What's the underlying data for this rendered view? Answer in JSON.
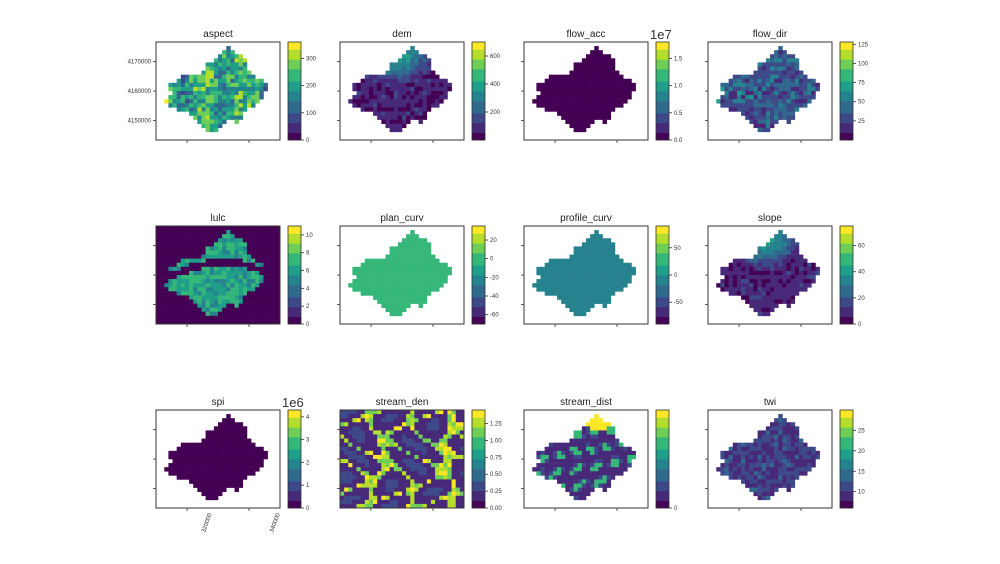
{
  "chart_data": [
    {
      "type": "heatmap",
      "title": "aspect",
      "variant": "mosaic",
      "seed": 3,
      "colorbar_ticks": [
        "0",
        "100",
        "200",
        "300"
      ],
      "colorbar_range": [
        0,
        360
      ],
      "y_ticks": [
        "4150000",
        "4160000",
        "4170000"
      ]
    },
    {
      "type": "heatmap",
      "title": "dem",
      "variant": "dark",
      "seed": 7,
      "colorbar_ticks": [
        "200",
        "400",
        "600"
      ],
      "colorbar_range": [
        0,
        700
      ]
    },
    {
      "type": "heatmap",
      "title": "flow_acc",
      "variant": "flat",
      "seed": 11,
      "offset": "1e7",
      "colorbar_ticks": [
        "0.0",
        "0.5",
        "1.0",
        "1.5"
      ],
      "colorbar_range": [
        0,
        1.8
      ]
    },
    {
      "type": "heatmap",
      "title": "flow_dir",
      "variant": "mosaic-dark",
      "seed": 5,
      "colorbar_ticks": [
        "25",
        "50",
        "75",
        "100",
        "125"
      ],
      "colorbar_range": [
        0,
        128
      ]
    },
    {
      "type": "heatmap",
      "title": "lulc",
      "variant": "lulc",
      "seed": 9,
      "colorbar_ticks": [
        "0",
        "2",
        "4",
        "6",
        "8",
        "10"
      ],
      "colorbar_range": [
        0,
        11
      ]
    },
    {
      "type": "heatmap",
      "title": "plan_curv",
      "variant": "uniform-light",
      "seed": 2,
      "colorbar_ticks": [
        "-60",
        "-40",
        "-20",
        "0",
        "20"
      ],
      "colorbar_range": [
        -70,
        35
      ]
    },
    {
      "type": "heatmap",
      "title": "profile_curv",
      "variant": "uniform-mid",
      "seed": 4,
      "colorbar_ticks": [
        "-50",
        "0",
        "50"
      ],
      "colorbar_range": [
        -90,
        90
      ]
    },
    {
      "type": "heatmap",
      "title": "slope",
      "variant": "dark",
      "seed": 13,
      "colorbar_ticks": [
        "0",
        "20",
        "40",
        "60"
      ],
      "colorbar_range": [
        0,
        75
      ]
    },
    {
      "type": "heatmap",
      "title": "spi",
      "variant": "flat",
      "seed": 17,
      "offset": "1e6",
      "colorbar_ticks": [
        "0",
        "1",
        "2",
        "3",
        "4"
      ],
      "colorbar_range": [
        0,
        4.3
      ],
      "x_ticks": [
        "320000",
        "340000"
      ]
    },
    {
      "type": "heatmap",
      "title": "stream_den",
      "variant": "streamden",
      "seed": 21,
      "colorbar_ticks": [
        "0.00",
        "0.25",
        "0.50",
        "0.75",
        "1.00",
        "1.25"
      ],
      "colorbar_range": [
        0,
        1.45
      ]
    },
    {
      "type": "heatmap",
      "title": "stream_dist",
      "variant": "streamdist",
      "seed": 23,
      "colorbar_ticks": [
        "0"
      ],
      "colorbar_range": [
        0,
        10
      ]
    },
    {
      "type": "heatmap",
      "title": "twi",
      "variant": "twi",
      "seed": 29,
      "colorbar_ticks": [
        "10",
        "15",
        "20",
        "25"
      ],
      "colorbar_range": [
        6,
        30
      ]
    }
  ],
  "colors": {
    "viridis": [
      "#440154",
      "#482878",
      "#3e4989",
      "#31688e",
      "#26828e",
      "#1f9e89",
      "#35b779",
      "#6ece58",
      "#b5de2b",
      "#fde725"
    ]
  }
}
